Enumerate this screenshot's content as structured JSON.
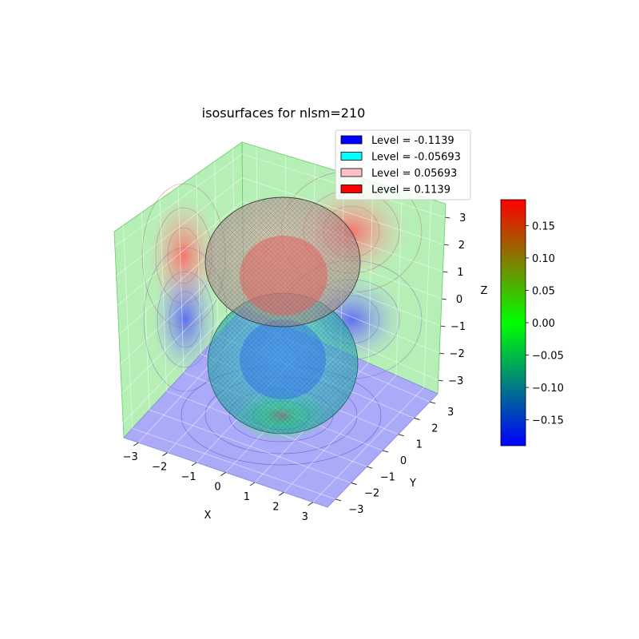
{
  "chart_data": {
    "type": "3d-isosurface",
    "title": "isosurfaces for nlsm=210",
    "xlabel": "X",
    "ylabel": "Y",
    "zlabel": "Z",
    "xlim": [
      -3.5,
      3.5
    ],
    "ylim": [
      -3.5,
      3.5
    ],
    "zlim": [
      -3.5,
      3.5
    ],
    "x_ticks": [
      -3,
      -2,
      -1,
      0,
      1,
      2,
      3
    ],
    "y_ticks": [
      -3,
      -2,
      -1,
      0,
      1,
      2,
      3
    ],
    "z_ticks": [
      -3,
      -2,
      -1,
      0,
      1,
      2,
      3
    ],
    "grid": true,
    "legend_position": "top-right",
    "legend": [
      {
        "label": "Level = -0.1139",
        "value": -0.1139,
        "color": "#0000ff"
      },
      {
        "label": "Level = -0.05693",
        "value": -0.05693,
        "color": "#00ffff"
      },
      {
        "label": "Level = 0.05693",
        "value": 0.05693,
        "color": "#ffc0cb"
      },
      {
        "label": "Level = 0.1139",
        "value": 0.1139,
        "color": "#ff0000"
      }
    ],
    "colorbar": {
      "min": -0.19,
      "max": 0.19,
      "ticks": [
        -0.15,
        -0.1,
        -0.05,
        0.0,
        0.05,
        0.1,
        0.15
      ],
      "tick_labels": [
        "−0.15",
        "−0.10",
        "−0.05",
        "0.00",
        "0.05",
        "0.10",
        "0.15"
      ],
      "colors": [
        "#0000ff",
        "#00ff00",
        "#ff0000"
      ]
    },
    "panes": {
      "floor": "#aaaaff",
      "walls": "#aaffaa"
    }
  }
}
